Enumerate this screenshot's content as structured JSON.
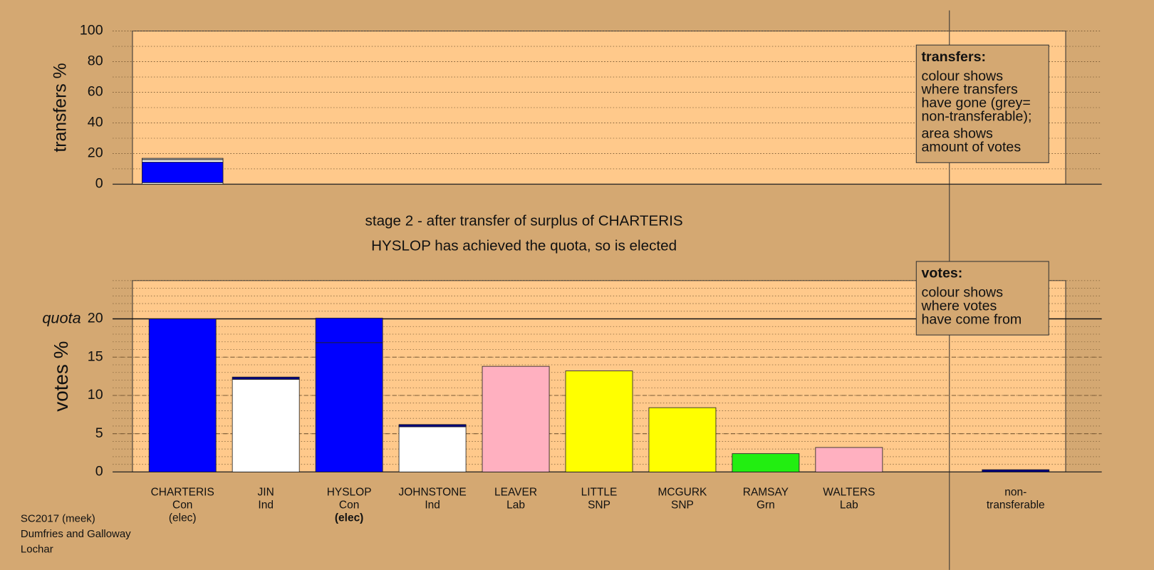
{
  "chart_data": [
    {
      "type": "stacked-bar",
      "ylabel": "transfers %",
      "ylim": [
        0,
        100
      ],
      "yticks": [
        0,
        20,
        40,
        60,
        80,
        100
      ],
      "minor_grid_step": 10,
      "stacks": [
        [
          {
            "value": 1,
            "color": "#ffffff"
          },
          {
            "value": 13.4,
            "color": "#0000ff"
          },
          {
            "value": 1.5,
            "color": "#ffffff"
          },
          {
            "value": 1,
            "color": "#aaaaaa"
          }
        ],
        null,
        null,
        null,
        null,
        null,
        null,
        null,
        null,
        null,
        null
      ],
      "legend": {
        "title": "transfers:",
        "paragraphs": [
          [
            "colour shows",
            "where transfers",
            "have gone (grey=",
            "non-transferable);"
          ],
          [
            "area shows",
            "amount of votes"
          ]
        ]
      }
    },
    {
      "type": "stacked-bar",
      "ylabel": "votes %",
      "ylim": [
        0,
        25
      ],
      "yticks": [
        0,
        5,
        10,
        15,
        20
      ],
      "minor_grid_step": 1,
      "quota": {
        "label": "quota",
        "value": 20
      },
      "categories": [
        {
          "lines": [
            "CHARTERIS",
            "Con",
            "(elec)"
          ]
        },
        {
          "lines": [
            "JIN",
            "Ind"
          ]
        },
        {
          "lines": [
            "HYSLOP",
            "Con",
            "(elec)"
          ],
          "bold": [
            2
          ]
        },
        {
          "lines": [
            "JOHNSTONE",
            "Ind"
          ]
        },
        {
          "lines": [
            "LEAVER",
            "Lab"
          ]
        },
        {
          "lines": [
            "LITTLE",
            "SNP"
          ]
        },
        {
          "lines": [
            "MCGURK",
            "SNP"
          ]
        },
        {
          "lines": [
            "RAMSAY",
            "Grn"
          ]
        },
        {
          "lines": [
            "WALTERS",
            "Lab"
          ]
        },
        null,
        {
          "lines": [
            "non-",
            "transferable"
          ]
        }
      ],
      "stacks": [
        [
          {
            "value": 20,
            "color": "#0000ff"
          }
        ],
        [
          {
            "value": 12.1,
            "color": "#ffffff"
          },
          {
            "value": 0.3,
            "color": "#000080"
          }
        ],
        [
          {
            "value": 16.9,
            "color": "#0000ff"
          },
          {
            "value": 3.2,
            "color": "#0000ff"
          }
        ],
        [
          {
            "value": 5.9,
            "color": "#ffffff"
          },
          {
            "value": 0.3,
            "color": "#000080"
          }
        ],
        [
          {
            "value": 13.8,
            "color": "#ffb0c0"
          }
        ],
        [
          {
            "value": 13.2,
            "color": "#ffff00"
          }
        ],
        [
          {
            "value": 8.4,
            "color": "#ffff00"
          }
        ],
        [
          {
            "value": 2.4,
            "color": "#22ee11"
          }
        ],
        [
          {
            "value": 3.2,
            "color": "#ffb0c0"
          }
        ],
        null,
        [
          {
            "value": 0.3,
            "color": "#000080"
          }
        ]
      ],
      "legend": {
        "title": "votes:",
        "paragraphs": [
          [
            "colour shows",
            "where votes",
            "have come from"
          ]
        ]
      }
    }
  ],
  "stage": [
    "stage 2 - after transfer of surplus of CHARTERIS",
    "HYSLOP has achieved the quota, so is elected"
  ],
  "footer": [
    "SC2017 (meek)",
    "Dumfries and Galloway",
    "Lochar"
  ]
}
